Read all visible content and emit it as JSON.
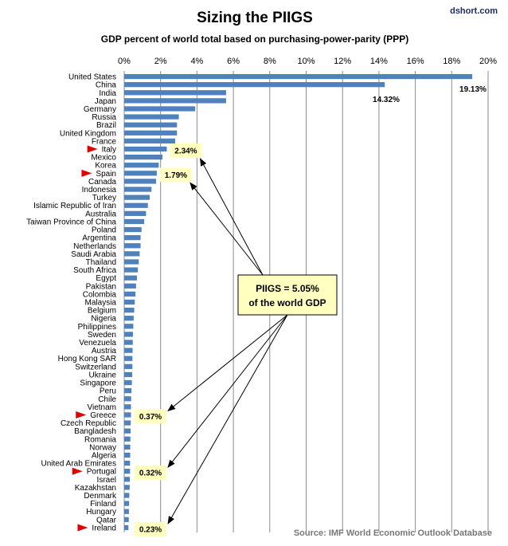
{
  "header": {
    "title": "Sizing the PIIGS",
    "subtitle": "GDP percent of world total based on purchasing-power-parity (PPP)",
    "credit": "dshort.com"
  },
  "source": "Source: IMF World Economic Outlook Database",
  "callout": {
    "line1": "PIIGS = 5.05%",
    "line2": "of the world GDP",
    "box_color": "#ffffc0"
  },
  "colors": {
    "bar": "#4f81bd",
    "flag": "#e00000",
    "grid": "#8c8c8c"
  },
  "chart_data": {
    "type": "bar",
    "orientation": "horizontal",
    "axis_position": "top",
    "xlim": [
      0,
      20
    ],
    "xticks": [
      "0%",
      "2%",
      "4%",
      "6%",
      "8%",
      "10%",
      "12%",
      "14%",
      "16%",
      "18%",
      "20%"
    ],
    "grid": true,
    "categories": [
      "United States",
      "China",
      "India",
      "Japan",
      "Germany",
      "Russia",
      "Brazil",
      "United Kingdom",
      "France",
      "Italy",
      "Mexico",
      "Korea",
      "Spain",
      "Canada",
      "Indonesia",
      "Turkey",
      "Islamic Republic of Iran",
      "Australia",
      "Taiwan Province of China",
      "Poland",
      "Argentina",
      "Netherlands",
      "Saudi Arabia",
      "Thailand",
      "South Africa",
      "Egypt",
      "Pakistan",
      "Colombia",
      "Malaysia",
      "Belgium",
      "Nigeria",
      "Philippines",
      "Sweden",
      "Venezuela",
      "Austria",
      "Hong Kong SAR",
      "Switzerland",
      "Ukraine",
      "Singapore",
      "Peru",
      "Chile",
      "Vietnam",
      "Greece",
      "Czech Republic",
      "Bangladesh",
      "Romania",
      "Norway",
      "Algeria",
      "United Arab Emirates",
      "Portugal",
      "Israel",
      "Kazakhstan",
      "Denmark",
      "Finland",
      "Hungary",
      "Qatar",
      "Ireland"
    ],
    "values": [
      19.13,
      14.32,
      5.6,
      5.6,
      3.9,
      3.0,
      2.9,
      2.9,
      2.8,
      2.34,
      2.1,
      1.9,
      1.79,
      1.75,
      1.5,
      1.4,
      1.3,
      1.2,
      1.1,
      0.95,
      0.9,
      0.9,
      0.85,
      0.8,
      0.75,
      0.7,
      0.65,
      0.62,
      0.58,
      0.55,
      0.52,
      0.5,
      0.48,
      0.47,
      0.46,
      0.45,
      0.45,
      0.44,
      0.42,
      0.4,
      0.38,
      0.37,
      0.37,
      0.36,
      0.35,
      0.34,
      0.33,
      0.33,
      0.32,
      0.32,
      0.31,
      0.3,
      0.28,
      0.27,
      0.26,
      0.25,
      0.23
    ],
    "data_labels": [
      {
        "category": "United States",
        "label": "19.13%"
      },
      {
        "category": "China",
        "label": "14.32%"
      }
    ],
    "highlighted": [
      {
        "category": "Italy",
        "label": "2.34%"
      },
      {
        "category": "Spain",
        "label": "1.79%"
      },
      {
        "category": "Greece",
        "label": "0.37%"
      },
      {
        "category": "Portugal",
        "label": "0.32%"
      },
      {
        "category": "Ireland",
        "label": "0.23%"
      }
    ]
  }
}
